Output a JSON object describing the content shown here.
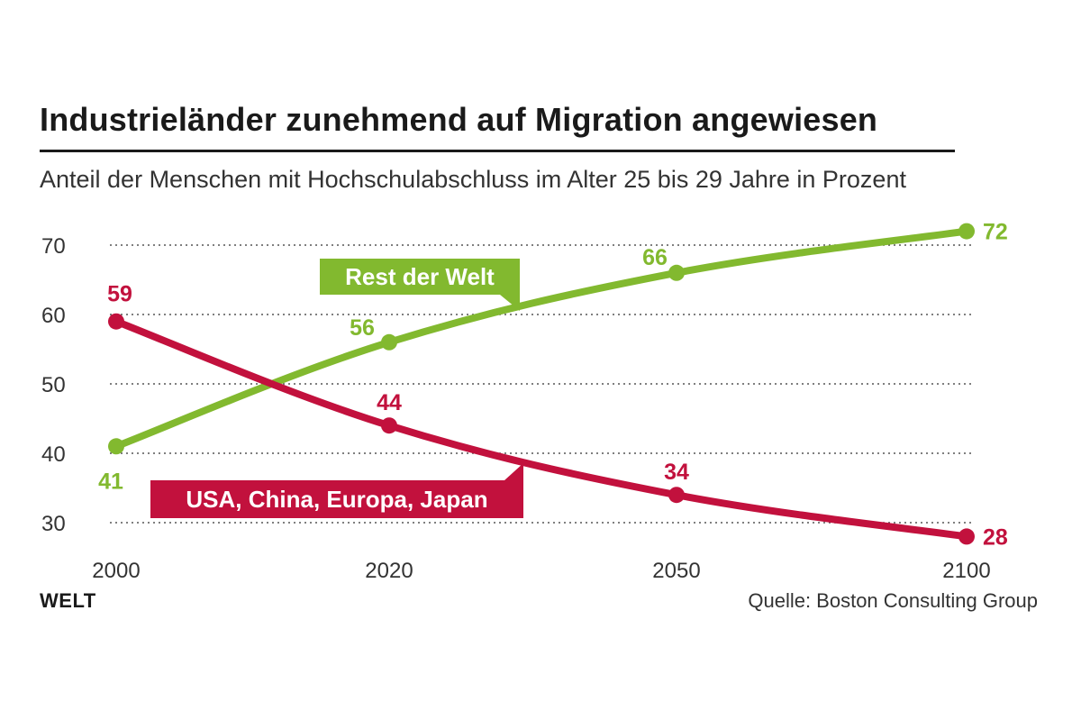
{
  "header": {
    "title": "Industrieländer zunehmend auf Migration angewiesen",
    "subtitle": "Anteil der Menschen mit Hochschulabschluss im Alter 25 bis 29 Jahre in Prozent"
  },
  "footer": {
    "brand": "WELT",
    "source": "Quelle: Boston Consulting Group"
  },
  "chart_data": {
    "type": "line",
    "x": [
      "2000",
      "2020",
      "2050",
      "2100"
    ],
    "yticks": [
      30,
      40,
      50,
      60,
      70
    ],
    "ylim": [
      27,
      73
    ],
    "grid": true,
    "series": [
      {
        "name": "Rest der Welt",
        "color": "#82b92f",
        "values": [
          41,
          56,
          66,
          72
        ]
      },
      {
        "name": "USA, China, Europa, Japan",
        "color": "#c2113d",
        "values": [
          59,
          44,
          34,
          28
        ]
      }
    ]
  }
}
